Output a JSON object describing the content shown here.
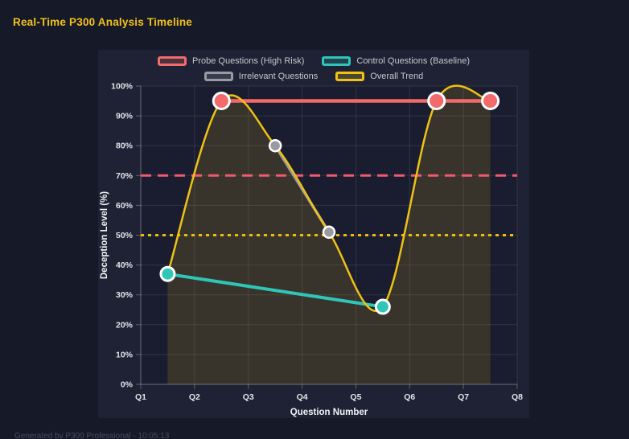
{
  "page": {
    "title": "Real-Time P300 Analysis Timeline",
    "footer": "Generated by P300 Professional - 10:05:13"
  },
  "colors": {
    "page_bg": "#161927",
    "panel_bg": "#1e2234",
    "plot_bg": "#1a1d2f",
    "grid": "rgba(255,255,255,0.10)",
    "axis_line": "rgba(255,255,255,0.28)",
    "tick_text": "#e3e4e8",
    "axis_title_text": "#f2f3f5",
    "legend_text": "#c6c7cc",
    "title_text": "#f2c21c",
    "footer_text": "#454b61",
    "point_border": "#ffffff"
  },
  "chart_data": {
    "type": "line",
    "title": "Real-Time P300 Analysis Timeline",
    "xlabel": "Question Number",
    "ylabel": "Deception Level (%)",
    "xlim": [
      1,
      8
    ],
    "ylim": [
      0,
      100
    ],
    "x_ticks": [
      {
        "value": 1,
        "label": "Q1"
      },
      {
        "value": 2,
        "label": "Q2"
      },
      {
        "value": 3,
        "label": "Q3"
      },
      {
        "value": 4,
        "label": "Q4"
      },
      {
        "value": 5,
        "label": "Q5"
      },
      {
        "value": 6,
        "label": "Q6"
      },
      {
        "value": 7,
        "label": "Q7"
      },
      {
        "value": 8,
        "label": "Q8"
      }
    ],
    "y_ticks": [
      {
        "value": 0,
        "label": "0%"
      },
      {
        "value": 10,
        "label": "10%"
      },
      {
        "value": 20,
        "label": "20%"
      },
      {
        "value": 30,
        "label": "30%"
      },
      {
        "value": 40,
        "label": "40%"
      },
      {
        "value": 50,
        "label": "50%"
      },
      {
        "value": 60,
        "label": "60%"
      },
      {
        "value": 70,
        "label": "70%"
      },
      {
        "value": 80,
        "label": "80%"
      },
      {
        "value": 90,
        "label": "90%"
      },
      {
        "value": 100,
        "label": "100%"
      }
    ],
    "grid": true,
    "legend_position": "top",
    "series": [
      {
        "name": "Probe Questions (High Risk)",
        "color": "#f26a6a",
        "line_width": 4.5,
        "point_radius": 10,
        "smooth": false,
        "points": [
          [
            2.5,
            95
          ],
          [
            6.5,
            95
          ],
          [
            7.5,
            95
          ]
        ]
      },
      {
        "name": "Control Questions (Baseline)",
        "color": "#2fc6b8",
        "line_width": 4,
        "point_radius": 8.5,
        "smooth": false,
        "points": [
          [
            1.5,
            37
          ],
          [
            5.5,
            26
          ]
        ]
      },
      {
        "name": "Irrelevant Questions",
        "color": "#9a9aa2",
        "line_width": 3.5,
        "point_radius": 7,
        "smooth": false,
        "points": [
          [
            3.5,
            80
          ],
          [
            4.5,
            51
          ]
        ]
      },
      {
        "name": "Overall Trend",
        "color": "#eec215",
        "line_width": 2.5,
        "point_radius": 0,
        "smooth": true,
        "fill_alpha": 0.14,
        "points": [
          [
            1.5,
            37
          ],
          [
            2.5,
            95
          ],
          [
            3.5,
            80
          ],
          [
            4.5,
            51
          ],
          [
            5.5,
            26
          ],
          [
            6.5,
            95
          ],
          [
            7.5,
            95
          ]
        ]
      }
    ],
    "thresholds": [
      {
        "value": 70,
        "color": "#f2586e",
        "dash": "13 8",
        "width": 3
      },
      {
        "value": 50,
        "color": "#eebc0c",
        "dash": "4 5",
        "width": 3
      }
    ]
  }
}
